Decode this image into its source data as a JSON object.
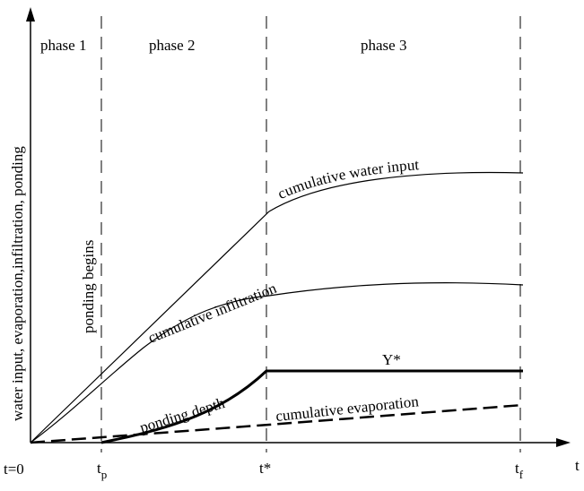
{
  "axes": {
    "x_label": "t",
    "y_label": "water input, evaporation,infiltration, ponding"
  },
  "phases": [
    "phase 1",
    "phase 2",
    "phase 3"
  ],
  "ticks": {
    "t0": "t=0",
    "tp_main": "t",
    "tp_sub": "p",
    "tstar": "t*",
    "tf_main": "t",
    "tf_sub": "f"
  },
  "annotations": {
    "ponding_begins": "ponding begins",
    "y_star": "Y*"
  },
  "curves": {
    "water_input": "cumulative water input",
    "infiltration": "cumulative infiltration",
    "ponding": "ponding depth",
    "evaporation": "cumulative evaporation"
  }
}
